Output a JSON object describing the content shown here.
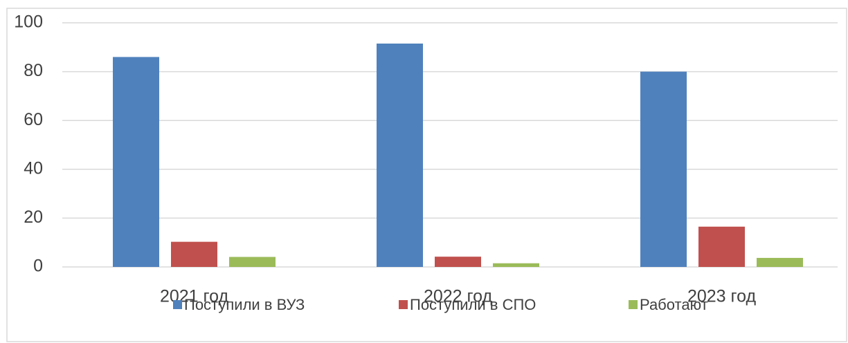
{
  "chart_data": {
    "type": "bar",
    "categories": [
      "2021 год",
      "2022 год",
      "2023 год"
    ],
    "series": [
      {
        "name": "Поступили в ВУЗ",
        "color": "#4f81bd",
        "values": [
          86,
          91.5,
          80
        ]
      },
      {
        "name": "Поступили в СПО",
        "color": "#c0504d",
        "values": [
          10.3,
          4.2,
          16.5
        ]
      },
      {
        "name": "Работают",
        "color": "#9bbb59",
        "values": [
          4.1,
          1.5,
          3.7
        ]
      }
    ],
    "ylim": [
      0,
      100
    ],
    "yticks": [
      0,
      20,
      40,
      60,
      80,
      100
    ],
    "grid": true,
    "legend": "bottom"
  }
}
